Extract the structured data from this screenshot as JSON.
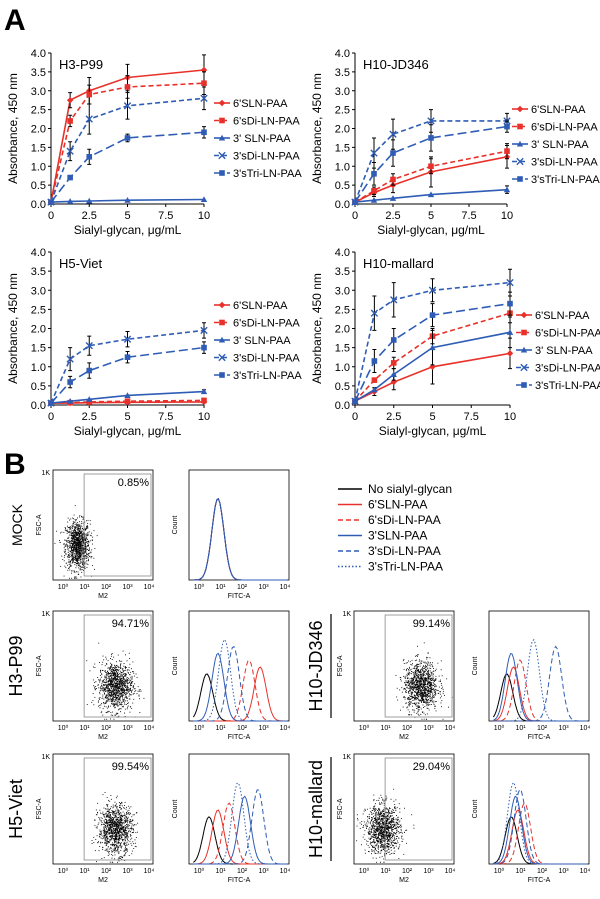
{
  "panel_labels": {
    "a": "A",
    "b": "B"
  },
  "colors": {
    "red": "#e8312a",
    "blue": "#2f5db5",
    "lightblue": "#6e90cc",
    "black": "#000000",
    "gray": "#888888"
  },
  "chart_data": [
    {
      "type": "line",
      "title": "H3-P99",
      "xlabel": "Sialyl-glycan, μg/mL",
      "ylabel": "Absorbance, 450 nm",
      "xlim": [
        0,
        10
      ],
      "ylim": [
        0,
        4
      ],
      "x": [
        0,
        1.25,
        2.5,
        5,
        10
      ],
      "x_ticks": [
        "0",
        "2.5",
        "5",
        "7.5",
        "10"
      ],
      "y_ticks": [
        "0.0",
        "0.5",
        "1.0",
        "1.5",
        "2.0",
        "2.5",
        "3.0",
        "3.5",
        "4.0"
      ],
      "legend_position": "right",
      "series": [
        {
          "name": "6'SLN-PAA",
          "color": "#e8312a",
          "dash": "solid",
          "marker": "diamond",
          "values": [
            0.05,
            2.75,
            3.0,
            3.35,
            3.55
          ],
          "errors": [
            0,
            0.2,
            0.35,
            0.35,
            0.4
          ]
        },
        {
          "name": "6'sDi-LN-PAA",
          "color": "#e8312a",
          "dash": "dash",
          "marker": "square",
          "values": [
            0.05,
            2.2,
            2.9,
            3.1,
            3.2
          ],
          "errors": [
            0,
            0.15,
            0.25,
            0.3,
            0.3
          ]
        },
        {
          "name": "3' SLN-PAA",
          "color": "#2f5db5",
          "dash": "solid",
          "marker": "triangle",
          "values": [
            0.05,
            0.07,
            0.08,
            0.1,
            0.12
          ],
          "errors": [
            0,
            0,
            0,
            0,
            0
          ]
        },
        {
          "name": "3'sDi-LN-PAA",
          "color": "#2f5db5",
          "dash": "dash",
          "marker": "x",
          "values": [
            0.05,
            1.4,
            2.25,
            2.6,
            2.8
          ],
          "errors": [
            0,
            0.25,
            0.4,
            0.35,
            0.3
          ]
        },
        {
          "name": "3'sTri-LN-PAA",
          "color": "#2f5db5",
          "dash": "longdash",
          "marker": "square",
          "values": [
            0.05,
            0.7,
            1.25,
            1.75,
            1.9
          ],
          "errors": [
            0,
            0.05,
            0.2,
            0.1,
            0.15
          ]
        }
      ]
    },
    {
      "type": "line",
      "title": "H10-JD346",
      "xlabel": "Sialyl-glycan, μg/mL",
      "ylabel": "Absorbance, 450 nm",
      "xlim": [
        0,
        10
      ],
      "ylim": [
        0,
        4
      ],
      "x": [
        0,
        1.25,
        2.5,
        5,
        10
      ],
      "x_ticks": [
        "0",
        "2.5",
        "5",
        "7.5",
        "10"
      ],
      "y_ticks": [
        "0.0",
        "0.5",
        "1.0",
        "1.5",
        "2.0",
        "2.5",
        "3.0",
        "3.5",
        "4.0"
      ],
      "legend_position": "right",
      "series": [
        {
          "name": "6'SLN-PAA",
          "color": "#e8312a",
          "dash": "solid",
          "marker": "diamond",
          "values": [
            0.05,
            0.3,
            0.5,
            0.85,
            1.25
          ],
          "errors": [
            0,
            0.1,
            0.2,
            0.4,
            0.3
          ]
        },
        {
          "name": "6'sDi-LN-PAA",
          "color": "#e8312a",
          "dash": "dash",
          "marker": "square",
          "values": [
            0.05,
            0.35,
            0.65,
            1.0,
            1.4
          ],
          "errors": [
            0,
            0.1,
            0.15,
            0.2,
            0.2
          ]
        },
        {
          "name": "3' SLN-PAA",
          "color": "#2f5db5",
          "dash": "solid",
          "marker": "triangle",
          "values": [
            0.05,
            0.1,
            0.15,
            0.25,
            0.38
          ],
          "errors": [
            0,
            0,
            0,
            0,
            0.1
          ]
        },
        {
          "name": "3'sDi-LN-PAA",
          "color": "#2f5db5",
          "dash": "dash",
          "marker": "x",
          "values": [
            0.05,
            1.35,
            1.85,
            2.2,
            2.2
          ],
          "errors": [
            0,
            0.4,
            0.4,
            0.3,
            0.2
          ]
        },
        {
          "name": "3'sTri-LN-PAA",
          "color": "#2f5db5",
          "dash": "longdash",
          "marker": "square",
          "values": [
            0.05,
            0.8,
            1.35,
            1.75,
            2.05
          ],
          "errors": [
            0,
            0.3,
            0.35,
            0.35,
            0.15
          ]
        }
      ]
    },
    {
      "type": "line",
      "title": "H5-Viet",
      "xlabel": "Sialyl-glycan, μg/mL",
      "ylabel": "Absorbance, 450 nm",
      "xlim": [
        0,
        10
      ],
      "ylim": [
        0,
        4
      ],
      "x": [
        0,
        1.25,
        2.5,
        5,
        10
      ],
      "x_ticks": [
        "0",
        "2.5",
        "5",
        "7.5",
        "10"
      ],
      "y_ticks": [
        "0.0",
        "0.5",
        "1.0",
        "1.5",
        "2.0",
        "2.5",
        "3.0",
        "3.5",
        "4.0"
      ],
      "legend_position": "right",
      "series": [
        {
          "name": "6'SLN-PAA",
          "color": "#e8312a",
          "dash": "solid",
          "marker": "diamond",
          "values": [
            0.05,
            0.05,
            0.06,
            0.07,
            0.08
          ],
          "errors": [
            0,
            0,
            0,
            0,
            0
          ]
        },
        {
          "name": "6'sDi-LN-PAA",
          "color": "#e8312a",
          "dash": "dash",
          "marker": "square",
          "values": [
            0.05,
            0.06,
            0.08,
            0.1,
            0.12
          ],
          "errors": [
            0,
            0,
            0,
            0,
            0
          ]
        },
        {
          "name": "3' SLN-PAA",
          "color": "#2f5db5",
          "dash": "solid",
          "marker": "triangle",
          "values": [
            0.05,
            0.1,
            0.15,
            0.25,
            0.35
          ],
          "errors": [
            0,
            0,
            0,
            0,
            0.05
          ]
        },
        {
          "name": "3'sDi-LN-PAA",
          "color": "#2f5db5",
          "dash": "dash",
          "marker": "x",
          "values": [
            0.05,
            1.2,
            1.55,
            1.72,
            1.95
          ],
          "errors": [
            0,
            0.3,
            0.25,
            0.2,
            0.2
          ]
        },
        {
          "name": "3'sTri-LN-PAA",
          "color": "#2f5db5",
          "dash": "longdash",
          "marker": "square",
          "values": [
            0.05,
            0.6,
            0.9,
            1.25,
            1.5
          ],
          "errors": [
            0,
            0.15,
            0.2,
            0.15,
            0.15
          ]
        }
      ]
    },
    {
      "type": "line",
      "title": "H10-mallard",
      "xlabel": "Sialyl-glycan, μg/mL",
      "ylabel": "Absorbance, 450 nm",
      "xlim": [
        0,
        10
      ],
      "ylim": [
        0,
        4
      ],
      "x": [
        0,
        1.25,
        2.5,
        5,
        10
      ],
      "x_ticks": [
        "0",
        "2.5",
        "5",
        "7.5",
        "10"
      ],
      "y_ticks": [
        "0.0",
        "0.5",
        "1.0",
        "1.5",
        "2.0",
        "2.5",
        "3.0",
        "3.5",
        "4.0"
      ],
      "legend_position": "right",
      "series": [
        {
          "name": "6'SLN-PAA",
          "color": "#e8312a",
          "dash": "solid",
          "marker": "diamond",
          "values": [
            0.1,
            0.35,
            0.6,
            1.0,
            1.35
          ],
          "errors": [
            0,
            0.1,
            0.2,
            0.45,
            0.4
          ]
        },
        {
          "name": "6'sDi-LN-PAA",
          "color": "#e8312a",
          "dash": "dash",
          "marker": "square",
          "values": [
            0.1,
            0.65,
            1.1,
            1.8,
            2.4
          ],
          "errors": [
            0,
            0.05,
            0.15,
            0.2,
            0.25
          ]
        },
        {
          "name": "3' SLN-PAA",
          "color": "#2f5db5",
          "dash": "solid",
          "marker": "triangle",
          "values": [
            0.1,
            0.4,
            0.8,
            1.5,
            1.9
          ],
          "errors": [
            0,
            0.05,
            0.15,
            0.45,
            0.4
          ]
        },
        {
          "name": "3'sDi-LN-PAA",
          "color": "#2f5db5",
          "dash": "dash",
          "marker": "x",
          "values": [
            0.1,
            2.4,
            2.75,
            3.0,
            3.2
          ],
          "errors": [
            0,
            0.45,
            0.45,
            0.3,
            0.35
          ]
        },
        {
          "name": "3'sTri-LN-PAA",
          "color": "#2f5db5",
          "dash": "longdash",
          "marker": "square",
          "values": [
            0.1,
            1.15,
            1.7,
            2.35,
            2.65
          ],
          "errors": [
            0,
            0.3,
            0.3,
            0.3,
            0.3
          ]
        }
      ]
    }
  ],
  "flow": {
    "legend_items": [
      {
        "name": "No sialyl-glycan",
        "color": "#000000",
        "dash": "solid"
      },
      {
        "name": "6'SLN-PAA",
        "color": "#e8312a",
        "dash": "solid"
      },
      {
        "name": "6'sDi-LN-PAA",
        "color": "#e8312a",
        "dash": "dash"
      },
      {
        "name": "3'SLN-PAA",
        "color": "#2f5db5",
        "dash": "solid"
      },
      {
        "name": "3'sDi-LN-PAA",
        "color": "#2f5db5",
        "dash": "dash"
      },
      {
        "name": "3'sTri-LN-PAA",
        "color": "#2f5db5",
        "dash": "dot"
      }
    ],
    "scatter_y_label": "FSC-A",
    "scatter_x_label": "M2",
    "hist_y_label": "Count",
    "hist_x_label": "FITC-A",
    "y_tick_1k": "1K",
    "decade_ticks": [
      "10⁰",
      "10¹",
      "10²",
      "10³",
      "10⁴"
    ],
    "rows": [
      {
        "label": "MOCK",
        "percent": "0.85%",
        "centre_log": 0.6,
        "spread": 0.5,
        "hist_peaks": [
          0.8,
          0.8,
          0.8,
          0.8,
          0.8,
          0.8
        ]
      },
      {
        "label": "H3-P99",
        "percent": "94.71%",
        "centre_log": 2.3,
        "spread": 0.7,
        "hist_peaks": [
          0.3,
          2.7,
          2.2,
          0.8,
          1.5,
          1.1
        ]
      },
      {
        "label": "H10-JD346",
        "percent": "99.14%",
        "centre_log": 2.5,
        "spread": 0.7,
        "hist_peaks": [
          0.3,
          0.6,
          0.9,
          0.5,
          2.5,
          1.5
        ]
      },
      {
        "label": "H5-Viet",
        "percent": "99.54%",
        "centre_log": 2.3,
        "spread": 0.7,
        "hist_peaks": [
          0.4,
          0.8,
          1.3,
          2.0,
          2.6,
          1.7
        ]
      },
      {
        "label": "H10-mallard",
        "percent": "29.04%",
        "centre_log": 0.8,
        "spread": 0.7,
        "hist_peaks": [
          0.5,
          0.8,
          1.1,
          0.7,
          0.9,
          0.6
        ]
      }
    ]
  }
}
